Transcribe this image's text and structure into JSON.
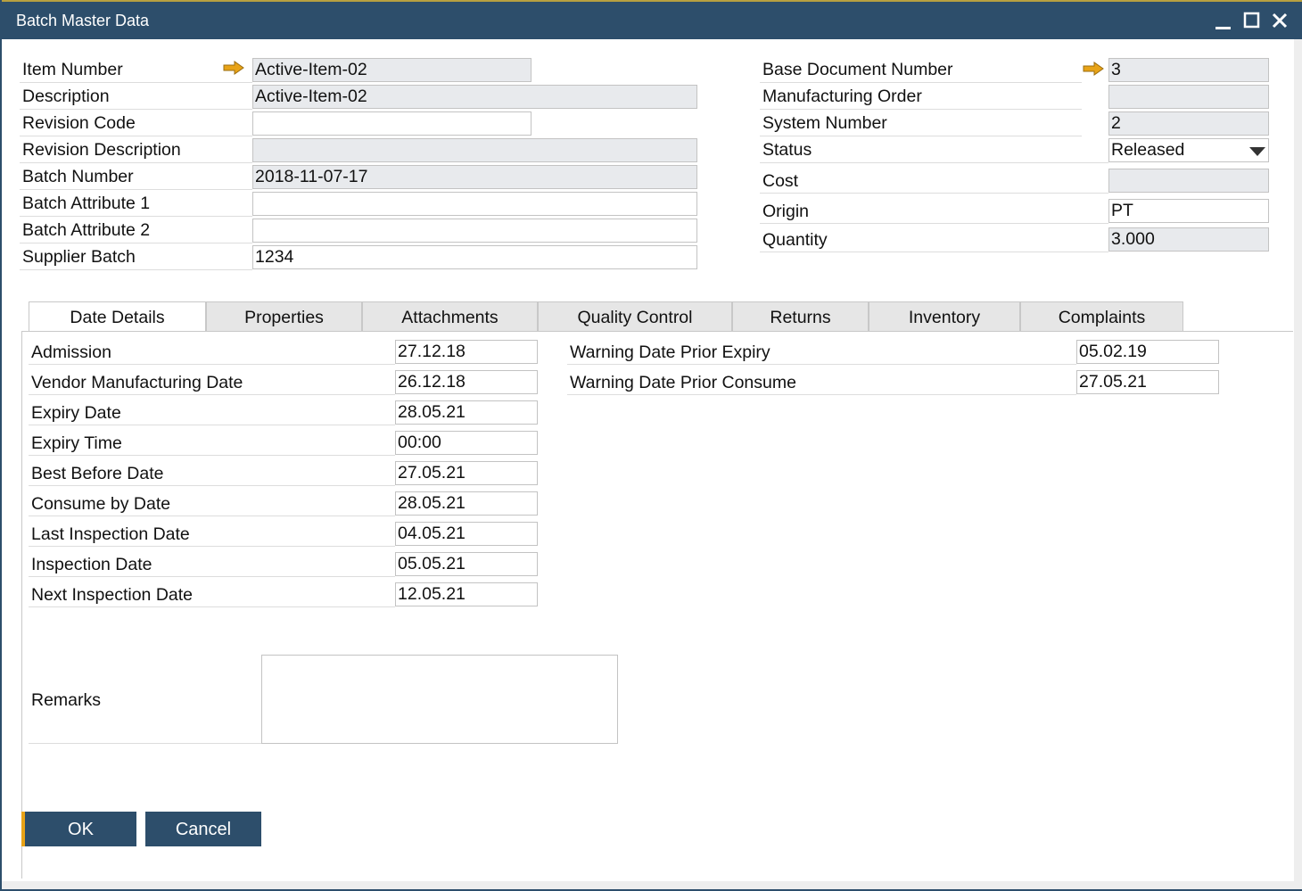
{
  "window": {
    "title": "Batch Master Data",
    "controls": [
      "minimize",
      "maximize",
      "close"
    ]
  },
  "colors": {
    "titlebar": "#2d4e6b",
    "accent": "#e8a317",
    "readonly": "#e8eaed"
  },
  "header_left": [
    {
      "label": "Item Number",
      "value": "Active-Item-02",
      "readonly": true,
      "short": true,
      "link_arrow": true
    },
    {
      "label": "Description",
      "value": "Active-Item-02",
      "readonly": true
    },
    {
      "label": "Revision Code",
      "value": "",
      "readonly": false,
      "short": true
    },
    {
      "label": "Revision Description",
      "value": "",
      "readonly": true
    },
    {
      "label": "Batch Number",
      "value": "2018-11-07-17",
      "readonly": true
    },
    {
      "label": "Batch Attribute 1",
      "value": "",
      "readonly": false
    },
    {
      "label": "Batch Attribute 2",
      "value": "",
      "readonly": false
    },
    {
      "label": "Supplier Batch",
      "value": "1234",
      "readonly": false
    }
  ],
  "header_right": [
    {
      "label": "Base Document Number",
      "value": "3",
      "readonly": true,
      "link_arrow": true
    },
    {
      "label": "Manufacturing Order",
      "value": "",
      "readonly": true
    },
    {
      "label": "System Number",
      "value": "2",
      "readonly": true
    },
    {
      "label": "Status",
      "value": "Released",
      "readonly": false,
      "dropdown": true
    },
    {
      "label": "Cost",
      "value": "",
      "readonly": true
    },
    {
      "label": "Origin",
      "value": "PT",
      "readonly": false
    },
    {
      "label": "Quantity",
      "value": "3.000",
      "readonly": true
    }
  ],
  "tabs": [
    {
      "label": "Date Details",
      "active": true
    },
    {
      "label": "Properties"
    },
    {
      "label": "Attachments"
    },
    {
      "label": "Quality Control"
    },
    {
      "label": "Returns"
    },
    {
      "label": "Inventory"
    },
    {
      "label": "Complaints"
    }
  ],
  "date_details_left": [
    {
      "label": "Admission",
      "value": "27.12.18"
    },
    {
      "label": "Vendor Manufacturing Date",
      "value": "26.12.18"
    },
    {
      "label": "Expiry Date",
      "value": "28.05.21"
    },
    {
      "label": "Expiry Time",
      "value": "00:00"
    },
    {
      "label": "Best Before Date",
      "value": "27.05.21"
    },
    {
      "label": "Consume by Date",
      "value": "28.05.21"
    },
    {
      "label": "Last Inspection Date",
      "value": "04.05.21"
    },
    {
      "label": "Inspection Date",
      "value": "05.05.21"
    },
    {
      "label": "Next Inspection Date",
      "value": "12.05.21"
    }
  ],
  "date_details_right": [
    {
      "label": "Warning Date Prior Expiry",
      "value": "05.02.19"
    },
    {
      "label": "Warning Date Prior Consume",
      "value": "27.05.21"
    }
  ],
  "remarks": {
    "label": "Remarks",
    "value": ""
  },
  "buttons": {
    "ok": "OK",
    "cancel": "Cancel"
  }
}
